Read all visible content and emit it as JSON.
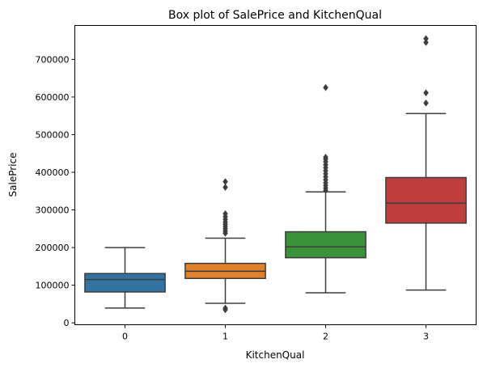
{
  "chart_data": {
    "type": "box",
    "title": "Box plot of SalePrice and KitchenQual",
    "xlabel": "KitchenQual",
    "ylabel": "SalePrice",
    "ylim": [
      -5000,
      790000
    ],
    "yticks": [
      0,
      100000,
      200000,
      300000,
      400000,
      500000,
      600000,
      700000
    ],
    "ytick_labels": [
      "0",
      "100000",
      "200000",
      "300000",
      "400000",
      "500000",
      "600000",
      "700000"
    ],
    "grid": false,
    "categories": [
      "0",
      "1",
      "2",
      "3"
    ],
    "boxes": [
      {
        "category": "0",
        "color": "#3274a1",
        "whisker_low": 39300,
        "q1": 82000,
        "median": 115000,
        "q3": 131000,
        "whisker_high": 200000,
        "outliers": []
      },
      {
        "category": "1",
        "color": "#e1812c",
        "whisker_low": 52000,
        "q1": 118000,
        "median": 137000,
        "q3": 158000,
        "whisker_high": 225000,
        "outliers": [
          35000,
          39000,
          238000,
          244000,
          250000,
          256000,
          262000,
          268000,
          275000,
          282000,
          290000,
          360000,
          375000
        ]
      },
      {
        "category": "2",
        "color": "#3a923a",
        "whisker_low": 80000,
        "q1": 173000,
        "median": 202000,
        "q3": 242000,
        "whisker_high": 348000,
        "outliers": [
          352000,
          358000,
          365000,
          372000,
          380000,
          388000,
          396000,
          404000,
          412000,
          420000,
          428000,
          435000,
          440000,
          625000
        ]
      },
      {
        "category": "3",
        "color": "#c03d3e",
        "whisker_low": 87000,
        "q1": 265000,
        "median": 318000,
        "q3": 386000,
        "whisker_high": 556000,
        "outliers": [
          584000,
          611000,
          745000,
          755000
        ]
      }
    ]
  }
}
